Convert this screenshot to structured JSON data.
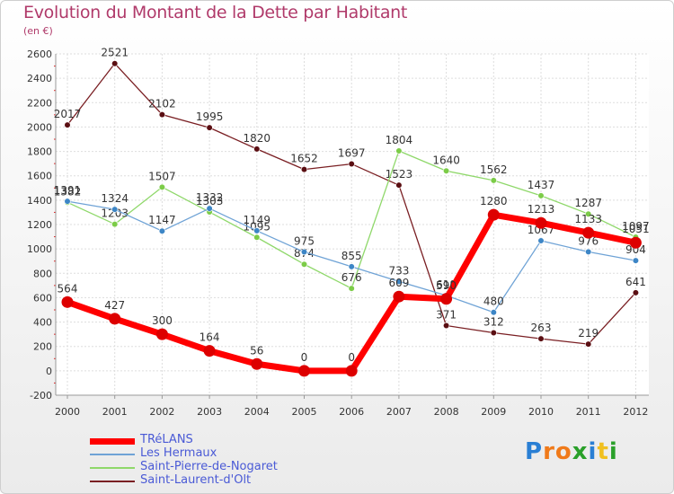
{
  "chart_data": {
    "type": "line",
    "title": "Evolution du Montant de la Dette par Habitant",
    "subtitle": "(en €)",
    "x": [
      "2000",
      "2001",
      "2002",
      "2003",
      "2004",
      "2005",
      "2006",
      "2007",
      "2008",
      "2009",
      "2010",
      "2011",
      "2012"
    ],
    "ylim": [
      -200,
      2600
    ],
    "yticks": [
      -200,
      0,
      200,
      400,
      600,
      800,
      1000,
      1200,
      1400,
      1600,
      1800,
      2000,
      2200,
      2400,
      2600
    ],
    "grid": true,
    "legend_position": "bottom-left",
    "series": [
      {
        "name": "Saint-Laurent-d'Olt",
        "color": "#7a1f23",
        "point_color": "#5a0e12",
        "values": [
          2017,
          2521,
          2102,
          1995,
          1820,
          1652,
          1697,
          1523,
          371,
          312,
          263,
          219,
          641
        ]
      },
      {
        "name": "Saint-Pierre-de-Nogaret",
        "color": "#8fd86a",
        "point_color": "#7ccc48",
        "values": [
          1382,
          1203,
          1507,
          1303,
          1095,
          874,
          676,
          1804,
          1640,
          1562,
          1437,
          1287,
          1097
        ]
      },
      {
        "name": "Les Hermaux",
        "color": "#6fa3d6",
        "point_color": "#3d86c6",
        "values": [
          1391,
          1324,
          1147,
          1332,
          1149,
          975,
          855,
          733,
          618,
          480,
          1067,
          976,
          904
        ]
      },
      {
        "name": "TRéLANS",
        "color": "#ff0000",
        "point_color": "#dd0000",
        "values": [
          564,
          427,
          300,
          164,
          56,
          0,
          0,
          609,
          590,
          1280,
          1213,
          1133,
          1051
        ]
      }
    ]
  },
  "legend": [
    {
      "label": "TRéLANS",
      "color": "#ff0000"
    },
    {
      "label": "Les Hermaux",
      "color": "#6fa3d6"
    },
    {
      "label": "Saint-Pierre-de-Nogaret",
      "color": "#8fd86a"
    },
    {
      "label": "Saint-Laurent-d'Olt",
      "color": "#7a1f23"
    }
  ],
  "logo": {
    "letters": [
      "P",
      "r",
      "o",
      "x",
      "i",
      "t",
      "i"
    ],
    "colors": [
      "#2a7fd4",
      "#f07a1a",
      "#f07a1a",
      "#2aa02a",
      "#2a7fd4",
      "#f0c020",
      "#2aa02a"
    ]
  }
}
